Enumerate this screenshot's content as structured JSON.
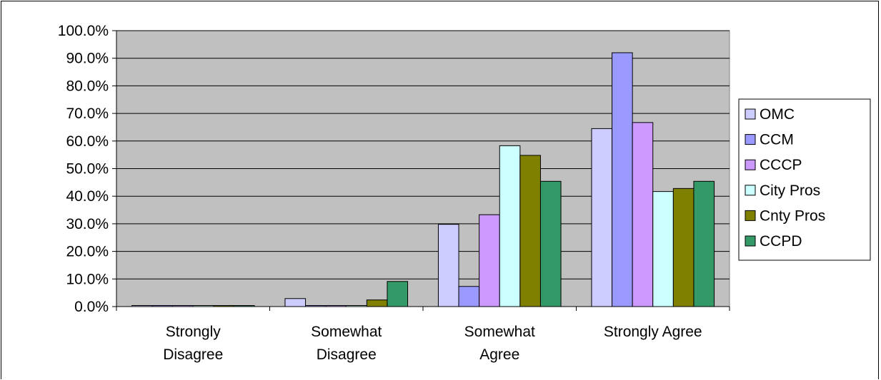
{
  "chart_data": {
    "type": "bar",
    "categories": [
      [
        "Strongly",
        "Disagree"
      ],
      [
        "Somewhat",
        "Disagree"
      ],
      [
        "Somewhat",
        "Agree"
      ],
      [
        "Strongly Agree"
      ]
    ],
    "series": [
      {
        "name": "OMC",
        "color": "#ccccff",
        "values": [
          0.0,
          2.9,
          29.8,
          64.5
        ]
      },
      {
        "name": "CCM",
        "color": "#9999ff",
        "values": [
          0.0,
          0.0,
          7.3,
          92.0
        ]
      },
      {
        "name": "CCCP",
        "color": "#cc99ff",
        "values": [
          0.0,
          0.0,
          33.3,
          66.7
        ]
      },
      {
        "name": "City Pros",
        "color": "#ccffff",
        "values": [
          0.0,
          0.0,
          58.3,
          41.7
        ]
      },
      {
        "name": "Cnty Pros",
        "color": "#808000",
        "values": [
          0.0,
          2.4,
          54.8,
          42.8
        ]
      },
      {
        "name": "CCPD",
        "color": "#339966",
        "values": [
          0.0,
          9.1,
          45.4,
          45.4
        ]
      }
    ],
    "ylim": [
      0,
      100
    ],
    "ytick_step": 10,
    "ytick_labels": [
      "0.0%",
      "10.0%",
      "20.0%",
      "30.0%",
      "40.0%",
      "50.0%",
      "60.0%",
      "70.0%",
      "80.0%",
      "90.0%",
      "100.0%"
    ],
    "plot_background": "#c0c0c0",
    "grid": true,
    "legend_position": "right"
  }
}
